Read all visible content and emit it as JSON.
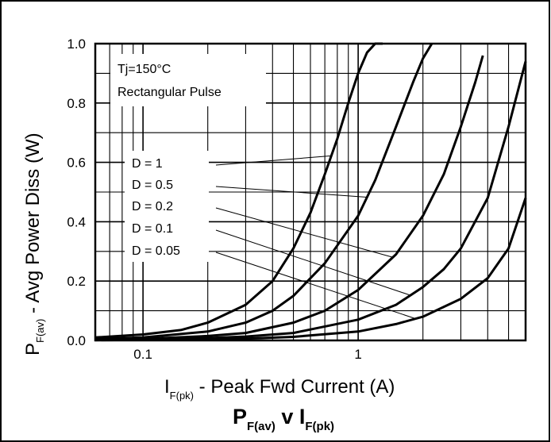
{
  "chart_data": {
    "type": "line",
    "title_main": "P",
    "title_main_sub": "F(av)",
    "title_mid": " v I",
    "title_end_sub": "F(pk)",
    "xlabel_main": "I",
    "xlabel_sub": "F(pk)",
    "xlabel_rest": " - Peak Fwd Current (A)",
    "ylabel_main": "P",
    "ylabel_sub": "F(av)",
    "ylabel_rest": " - Avg Power Diss (W)",
    "x_scale": "log",
    "xlim": [
      0.06,
      6
    ],
    "ylim": [
      0,
      1.0
    ],
    "x_ticks": [
      {
        "value": 0.1,
        "label": "0.1"
      },
      {
        "value": 1,
        "label": "1"
      }
    ],
    "y_ticks": [
      {
        "value": 0.0,
        "label": "0.0"
      },
      {
        "value": 0.2,
        "label": "0.2"
      },
      {
        "value": 0.4,
        "label": "0.4"
      },
      {
        "value": 0.6,
        "label": "0.6"
      },
      {
        "value": 0.8,
        "label": "0.8"
      },
      {
        "value": 1.0,
        "label": "1.0"
      }
    ],
    "grid": true,
    "conditions": [
      "Tj=150°C",
      "Rectangular Pulse"
    ],
    "legend": [
      "D = 1",
      "D = 0.5",
      "D = 0.2",
      "D = 0.1",
      "D = 0.05"
    ],
    "series": [
      {
        "name": "D = 1",
        "x": [
          0.06,
          0.1,
          0.15,
          0.2,
          0.3,
          0.4,
          0.5,
          0.6,
          0.7,
          0.8,
          0.9,
          1.0,
          1.1,
          1.2,
          1.3
        ],
        "y": [
          0.01,
          0.02,
          0.035,
          0.06,
          0.12,
          0.2,
          0.31,
          0.43,
          0.56,
          0.68,
          0.8,
          0.9,
          0.97,
          1.0,
          1.0
        ]
      },
      {
        "name": "D = 0.5",
        "x": [
          0.06,
          0.1,
          0.2,
          0.3,
          0.4,
          0.5,
          0.7,
          1.0,
          1.2,
          1.5,
          1.8,
          2.0,
          2.2
        ],
        "y": [
          0.005,
          0.01,
          0.03,
          0.06,
          0.1,
          0.15,
          0.26,
          0.42,
          0.54,
          0.72,
          0.87,
          0.95,
          1.0
        ]
      },
      {
        "name": "D = 0.2",
        "x": [
          0.06,
          0.1,
          0.2,
          0.3,
          0.5,
          0.7,
          1.0,
          1.5,
          2.0,
          2.5,
          3.0,
          3.5,
          3.8
        ],
        "y": [
          0.003,
          0.005,
          0.015,
          0.025,
          0.06,
          0.1,
          0.17,
          0.29,
          0.42,
          0.56,
          0.72,
          0.87,
          0.96
        ]
      },
      {
        "name": "D = 0.1",
        "x": [
          0.06,
          0.1,
          0.2,
          0.3,
          0.5,
          1.0,
          1.5,
          2.0,
          2.5,
          3.0,
          4.0,
          5.0,
          6.0
        ],
        "y": [
          0.002,
          0.003,
          0.008,
          0.013,
          0.025,
          0.07,
          0.12,
          0.18,
          0.24,
          0.31,
          0.48,
          0.72,
          0.94
        ]
      },
      {
        "name": "D = 0.05",
        "x": [
          0.06,
          0.1,
          0.3,
          0.5,
          1.0,
          1.5,
          2.0,
          3.0,
          4.0,
          5.0,
          6.0
        ],
        "y": [
          0.001,
          0.002,
          0.006,
          0.012,
          0.03,
          0.055,
          0.08,
          0.14,
          0.21,
          0.31,
          0.48
        ]
      }
    ]
  }
}
